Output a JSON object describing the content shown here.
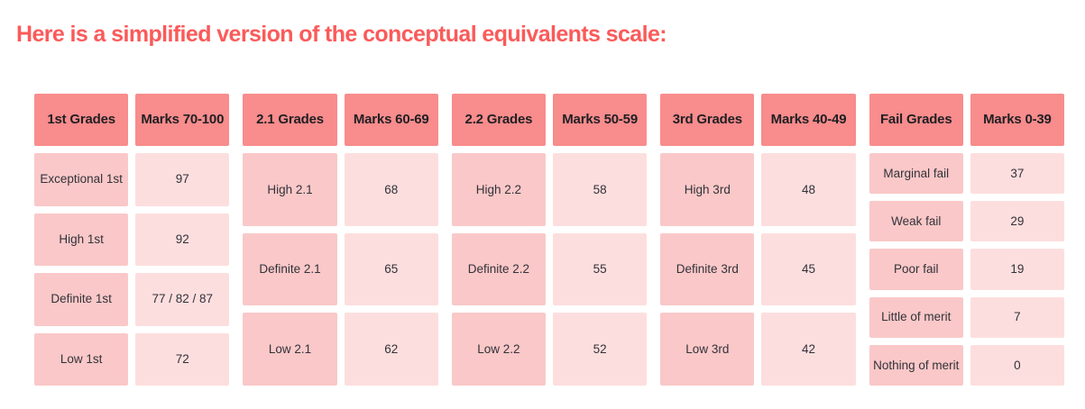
{
  "page": {
    "title": "Here is a simplified version of the conceptual equivalents scale:"
  },
  "colors": {
    "title_color": "#FB5A5A",
    "header_bg": "#F98C8C",
    "grade_cell_bg": "#FAC8C8",
    "marks_cell_bg": "#FDDEDE",
    "header_text": "#1F1F23",
    "cell_text": "#32323A",
    "page_bg": "#FFFFFF"
  },
  "tables": [
    {
      "grade_header": "1st Grades",
      "marks_header": "Marks 70-100",
      "rows": [
        {
          "grade": "Exceptional 1st",
          "marks": "97"
        },
        {
          "grade": "High 1st",
          "marks": "92"
        },
        {
          "grade": "Definite 1st",
          "marks": "77 / 82 / 87"
        },
        {
          "grade": "Low 1st",
          "marks": "72"
        }
      ]
    },
    {
      "grade_header": "2.1 Grades",
      "marks_header": "Marks 60-69",
      "rows": [
        {
          "grade": "High 2.1",
          "marks": "68"
        },
        {
          "grade": "Definite 2.1",
          "marks": "65"
        },
        {
          "grade": "Low 2.1",
          "marks": "62"
        }
      ]
    },
    {
      "grade_header": "2.2 Grades",
      "marks_header": "Marks 50-59",
      "rows": [
        {
          "grade": "High 2.2",
          "marks": "58"
        },
        {
          "grade": "Definite 2.2",
          "marks": "55"
        },
        {
          "grade": "Low 2.2",
          "marks": "52"
        }
      ]
    },
    {
      "grade_header": "3rd Grades",
      "marks_header": "Marks 40-49",
      "rows": [
        {
          "grade": "High 3rd",
          "marks": "48"
        },
        {
          "grade": "Definite 3rd",
          "marks": "45"
        },
        {
          "grade": "Low 3rd",
          "marks": "42"
        }
      ]
    },
    {
      "grade_header": "Fail Grades",
      "marks_header": "Marks 0-39",
      "rows": [
        {
          "grade": "Marginal fail",
          "marks": "37"
        },
        {
          "grade": "Weak fail",
          "marks": "29"
        },
        {
          "grade": "Poor fail",
          "marks": "19"
        },
        {
          "grade": "Little of merit",
          "marks": "7"
        },
        {
          "grade": "Nothing of merit",
          "marks": "0"
        }
      ]
    }
  ]
}
